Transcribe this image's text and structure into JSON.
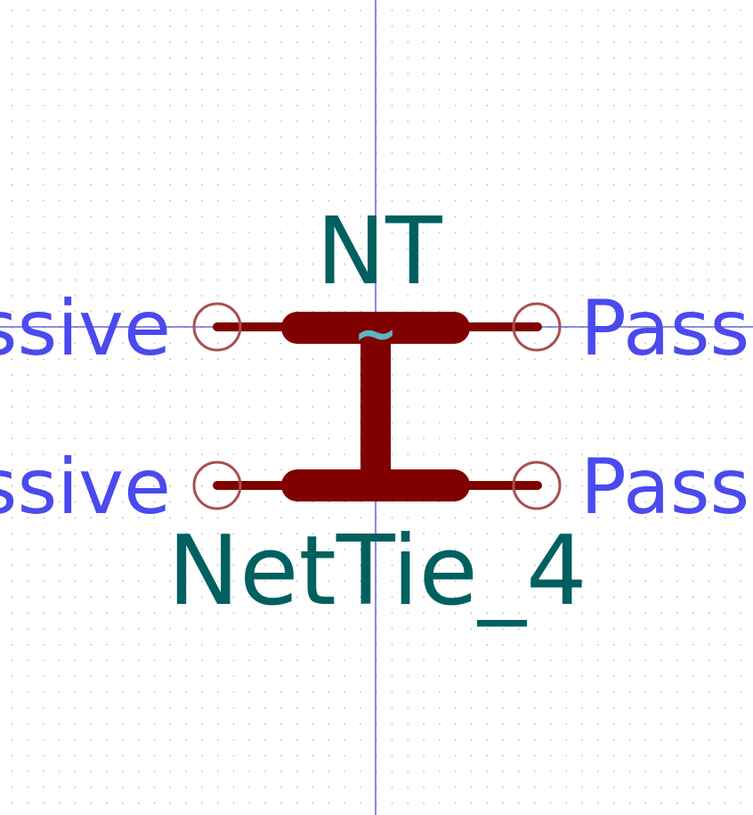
{
  "symbol": {
    "reference": "NT",
    "value": "NetTie_4",
    "tilde": "~"
  },
  "pins": {
    "top_left": {
      "type_label": "Passive"
    },
    "bottom_left": {
      "type_label": "Passive"
    },
    "top_right": {
      "type_label": "Passive"
    },
    "bottom_right": {
      "type_label": "Passive"
    }
  },
  "colors": {
    "background": "#ffffff",
    "grid_dot": "#b0b0b0",
    "axis": "#1a1acc",
    "body": "#800000",
    "pin_circle": "#a85050",
    "field_text": "#006060",
    "pin_type_text": "#4a4aee",
    "tilde": "#5ab8c0"
  }
}
